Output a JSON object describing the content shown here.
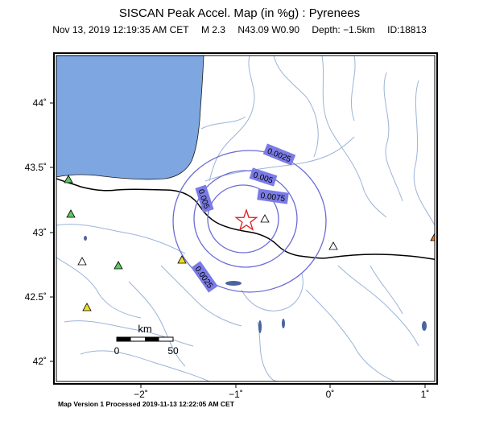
{
  "header": {
    "title": "SISCAN Peak Accel. Map (in %g) : Pyrenees",
    "date": "Nov 13, 2019 12:19:35 AM CET",
    "magnitude": "M 2.3",
    "location": "N43.09 W0.90",
    "depth": "Depth: −1.5km",
    "event_id": "ID:18813"
  },
  "axes": {
    "lat_ticks": [
      "44˚",
      "43.5˚",
      "43˚",
      "42.5˚",
      "42˚"
    ],
    "lon_ticks": [
      "−2˚",
      "−1˚",
      "0˚",
      "1˚"
    ]
  },
  "contours": {
    "labels": [
      "0.0025",
      "0.005",
      "0.0075",
      "0.005",
      "0.0025"
    ],
    "color": "#6b6bd6",
    "label_fill": "#7b7be6"
  },
  "epicenter": {
    "symbol": "star-icon",
    "color": "#e02020"
  },
  "stations": [
    {
      "id": "green-1",
      "color": "#5ec85e"
    },
    {
      "id": "green-2",
      "color": "#5ec85e"
    },
    {
      "id": "green-3",
      "color": "#5ec85e"
    },
    {
      "id": "yellow-1",
      "color": "#f0e020"
    },
    {
      "id": "yellow-2",
      "color": "#f0e020"
    },
    {
      "id": "white-1",
      "color": "#ffffff"
    },
    {
      "id": "white-2",
      "color": "#ffffff"
    },
    {
      "id": "white-3",
      "color": "#ffffff"
    },
    {
      "id": "orange-1",
      "color": "#f08020"
    }
  ],
  "scale_bar": {
    "unit": "km",
    "start": "0",
    "end": "50"
  },
  "colors": {
    "sea": "#7ea6e0",
    "rivers": "#9bb4d8",
    "border": "#000000"
  },
  "footer": "Map Version 1 Processed 2019-11-13 12:22:05 AM CET"
}
